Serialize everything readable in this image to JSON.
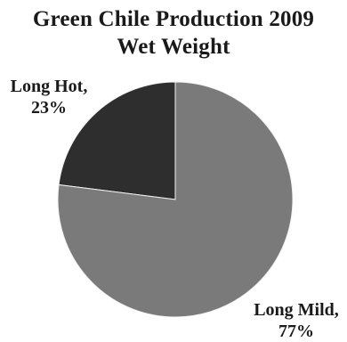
{
  "chart_data": {
    "type": "pie",
    "title": [
      "Green Chile Production 2009",
      "Wet Weight"
    ],
    "slices": [
      {
        "label": "Long Hot,",
        "value_label": "23%",
        "value": 23,
        "color": "#2e2e2e"
      },
      {
        "label": "Long Mild,",
        "value_label": "77%",
        "value": 77,
        "color": "#7a7a7a"
      }
    ],
    "start_angle_deg": 0,
    "direction": "counterclockwise",
    "legend": "none"
  }
}
